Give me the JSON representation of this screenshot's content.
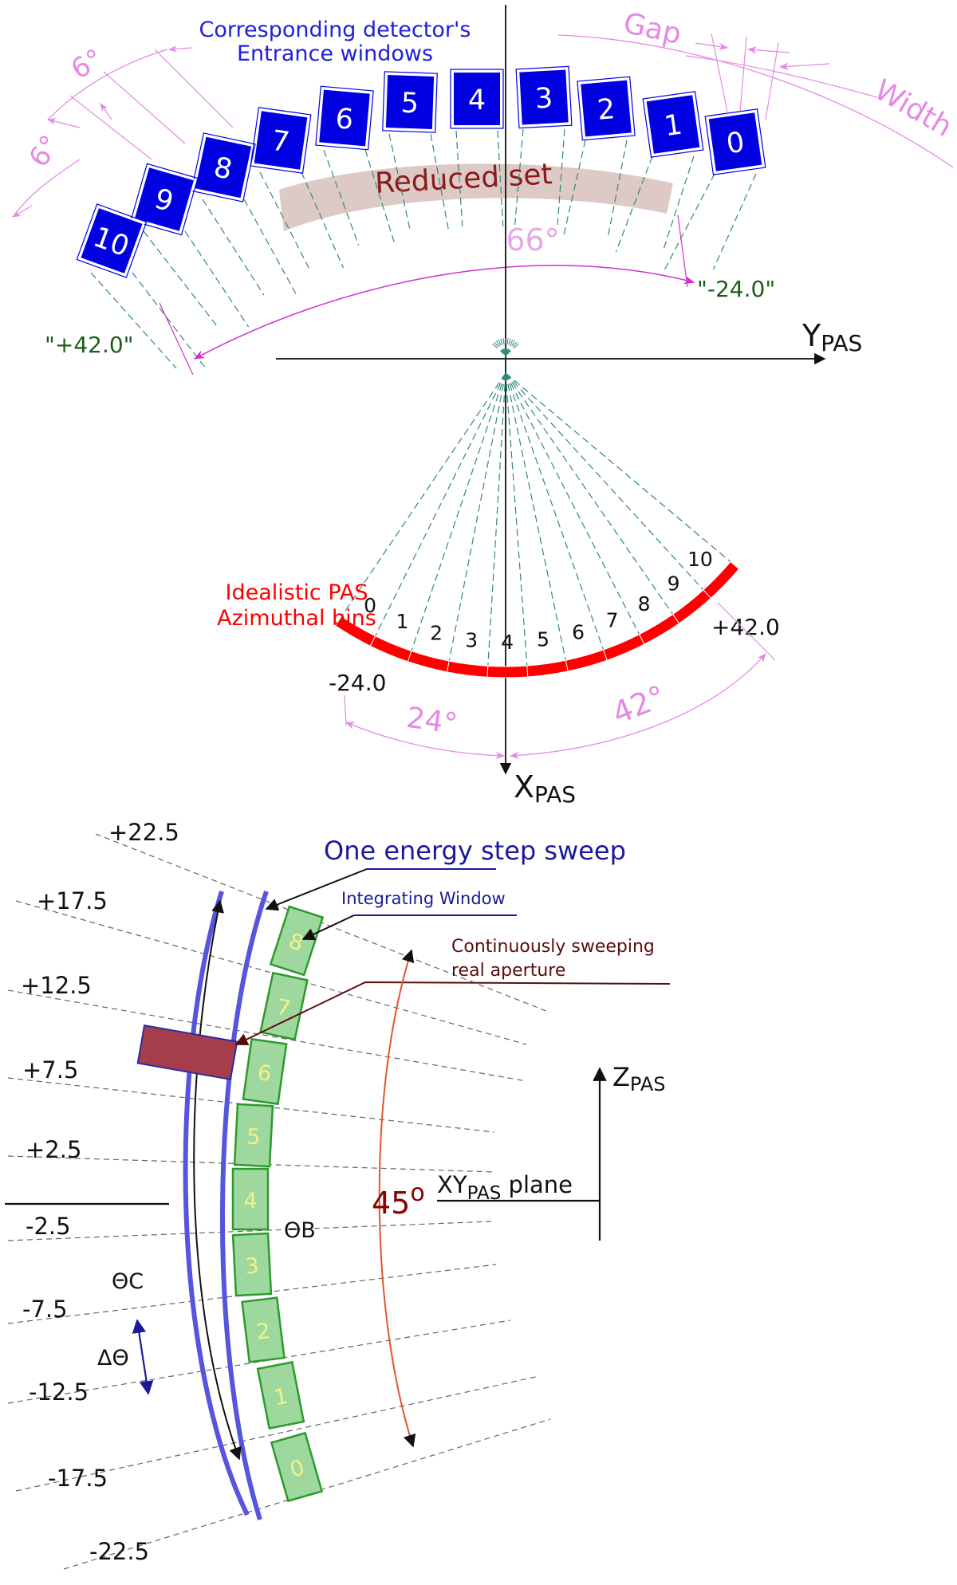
{
  "colors": {
    "blue_box": "#0000e0",
    "pink": "#e48ae4",
    "magenta": "#cc33cc",
    "dark_green": "#1a5e1a",
    "red": "#ff0000",
    "dark_red": "#8b0000",
    "green_fill": "#9ed89e",
    "green_stroke": "#2c9a2c",
    "aperture": "#a63d4a",
    "sweep_blue": "#5555dd",
    "teal_dash": "#2f8a7a",
    "navy": "#1a1a99"
  },
  "top": {
    "header": [
      "Corresponding detector's",
      "Entrance windows"
    ],
    "window_numbers": [
      "0",
      "1",
      "2",
      "3",
      "4",
      "5",
      "6",
      "7",
      "8",
      "9",
      "10"
    ],
    "reduced_set": "Reduced set",
    "gap": "Gap",
    "width": "Width",
    "six_deg_upper": "6°",
    "six_deg_lower": "6°",
    "span_angle": "66°",
    "right_limit": "\"-24.0\"",
    "left_limit": "\"+42.0\"",
    "y_axis_main": "Y",
    "y_axis_sub": "PAS"
  },
  "middle": {
    "title": [
      "Idealistic PAS",
      "Azimuthal bins"
    ],
    "bin_numbers": [
      "0",
      "1",
      "2",
      "3",
      "4",
      "5",
      "6",
      "7",
      "8",
      "9",
      "10"
    ],
    "left_value": "-24.0",
    "right_value": "+42.0",
    "left_angle": "24°",
    "right_angle": "42°",
    "x_axis_main": "X",
    "x_axis_sub": "PAS"
  },
  "bottom": {
    "theta_ticks": [
      "+22.5",
      "+17.5",
      "+12.5",
      "+7.5",
      "+2.5",
      "-2.5",
      "-7.5",
      "-12.5",
      "-17.5",
      "-22.5"
    ],
    "sweep_title": "One energy step sweep",
    "integrating_window": "Integrating Window",
    "aperture_label": [
      "Continuously sweeping",
      "real aperture"
    ],
    "window_numbers": [
      "8",
      "7",
      "6",
      "5",
      "4",
      "3",
      "2",
      "1",
      "0"
    ],
    "angle_45_main": "45",
    "angle_45_sup": "o",
    "plane_pre": "XY",
    "plane_sub": "PAS",
    "plane_post": " plane",
    "z_axis_main": "Z",
    "z_axis_sub": "PAS",
    "theta_b": "ΘB",
    "theta_c": "ΘC",
    "delta_theta": "ΔΘ"
  }
}
